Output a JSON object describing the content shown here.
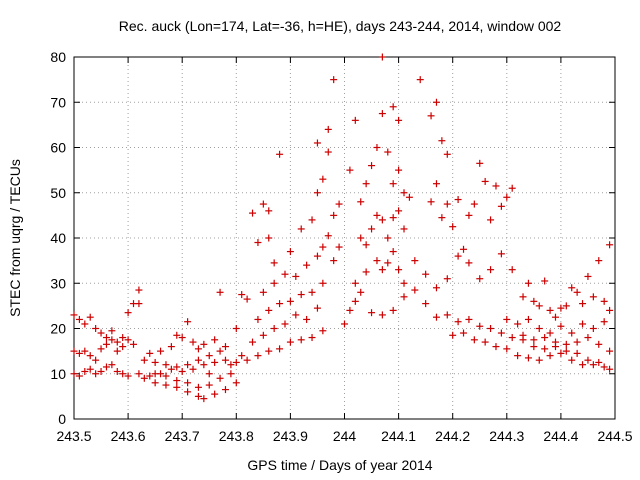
{
  "chart_data": {
    "type": "scatter",
    "title": "Rec. auck (Lon=174, Lat=-36, h=HE), days 243-244, 2014, window 002",
    "xlabel": "GPS time / Days of year 2014",
    "ylabel": "STEC from uqrg / TECUs",
    "xlim": [
      243.5,
      244.5
    ],
    "ylim": [
      0,
      80
    ],
    "x_ticks": [
      "243.5",
      "243.6",
      "243.7",
      "243.8",
      "243.9",
      "244",
      "244.1",
      "244.2",
      "244.3",
      "244.4",
      "244.5"
    ],
    "y_ticks": [
      "0",
      "10",
      "20",
      "30",
      "40",
      "50",
      "60",
      "70",
      "80"
    ],
    "grid": true,
    "legend": "none",
    "marker": "plus",
    "color": "#cc0000",
    "series": [
      {
        "points": [
          [
            243.5,
            23.0
          ],
          [
            243.51,
            22.0
          ],
          [
            243.52,
            21.0
          ],
          [
            243.53,
            22.5
          ],
          [
            243.54,
            20.0
          ],
          [
            243.55,
            19.0
          ],
          [
            243.56,
            18.0
          ],
          [
            243.57,
            19.5
          ],
          [
            243.58,
            17.0
          ],
          [
            243.59,
            18.0
          ],
          [
            243.6,
            23.5
          ],
          [
            243.61,
            25.5
          ],
          [
            243.62,
            25.5
          ],
          [
            243.62,
            28.5
          ],
          [
            243.5,
            15.0
          ],
          [
            243.51,
            14.5
          ],
          [
            243.52,
            15.0
          ],
          [
            243.53,
            14.0
          ],
          [
            243.54,
            13.0
          ],
          [
            243.55,
            15.5
          ],
          [
            243.56,
            16.5
          ],
          [
            243.57,
            17.5
          ],
          [
            243.58,
            15.0
          ],
          [
            243.59,
            16.0
          ],
          [
            243.6,
            17.5
          ],
          [
            243.61,
            16.5
          ],
          [
            243.5,
            10.0
          ],
          [
            243.51,
            9.5
          ],
          [
            243.52,
            10.5
          ],
          [
            243.53,
            11.0
          ],
          [
            243.54,
            10.0
          ],
          [
            243.55,
            10.5
          ],
          [
            243.56,
            11.5
          ],
          [
            243.57,
            12.0
          ],
          [
            243.58,
            10.5
          ],
          [
            243.59,
            10.0
          ],
          [
            243.6,
            9.5
          ],
          [
            243.62,
            10.0
          ],
          [
            243.64,
            9.5
          ],
          [
            243.66,
            10.0
          ],
          [
            243.68,
            11.0
          ],
          [
            243.7,
            10.5
          ],
          [
            243.72,
            11.0
          ],
          [
            243.74,
            12.0
          ],
          [
            243.76,
            12.5
          ],
          [
            243.78,
            13.0
          ],
          [
            243.63,
            13.0
          ],
          [
            243.65,
            12.5
          ],
          [
            243.67,
            12.0
          ],
          [
            243.69,
            11.5
          ],
          [
            243.71,
            12.0
          ],
          [
            243.73,
            13.0
          ],
          [
            243.75,
            14.0
          ],
          [
            243.77,
            15.0
          ],
          [
            243.64,
            14.5
          ],
          [
            243.66,
            15.0
          ],
          [
            243.68,
            16.0
          ],
          [
            243.7,
            18.0
          ],
          [
            243.72,
            17.0
          ],
          [
            243.74,
            16.5
          ],
          [
            243.76,
            17.5
          ],
          [
            243.78,
            16.0
          ],
          [
            243.63,
            9.0
          ],
          [
            243.65,
            8.0
          ],
          [
            243.67,
            7.5
          ],
          [
            243.69,
            7.0
          ],
          [
            243.71,
            6.0
          ],
          [
            243.73,
            5.0
          ],
          [
            243.74,
            4.5
          ],
          [
            243.76,
            5.5
          ],
          [
            243.78,
            6.5
          ],
          [
            243.8,
            8.0
          ],
          [
            243.65,
            10.0
          ],
          [
            243.67,
            9.5
          ],
          [
            243.69,
            8.5
          ],
          [
            243.71,
            8.0
          ],
          [
            243.73,
            7.0
          ],
          [
            243.75,
            7.5
          ],
          [
            243.77,
            9.0
          ],
          [
            243.79,
            10.0
          ],
          [
            243.69,
            18.5
          ],
          [
            243.71,
            21.5
          ],
          [
            243.73,
            15.5
          ],
          [
            243.75,
            10.0
          ],
          [
            243.77,
            28.0
          ],
          [
            243.79,
            12.0
          ],
          [
            243.81,
            14.0
          ],
          [
            243.8,
            12.5
          ],
          [
            243.8,
            20.0
          ],
          [
            243.81,
            27.5
          ],
          [
            243.82,
            26.5
          ],
          [
            243.83,
            45.5
          ],
          [
            243.84,
            39.0
          ],
          [
            243.85,
            47.5
          ],
          [
            243.86,
            46.0
          ],
          [
            243.86,
            40.0
          ],
          [
            243.87,
            34.5
          ],
          [
            243.88,
            58.5
          ],
          [
            243.82,
            13.0
          ],
          [
            243.84,
            14.0
          ],
          [
            243.86,
            15.0
          ],
          [
            243.88,
            15.5
          ],
          [
            243.9,
            17.0
          ],
          [
            243.92,
            17.5
          ],
          [
            243.94,
            18.0
          ],
          [
            243.96,
            19.5
          ],
          [
            243.83,
            17.0
          ],
          [
            243.85,
            18.5
          ],
          [
            243.87,
            20.0
          ],
          [
            243.89,
            21.0
          ],
          [
            243.91,
            23.0
          ],
          [
            243.93,
            22.0
          ],
          [
            243.95,
            24.5
          ],
          [
            243.84,
            22.0
          ],
          [
            243.86,
            24.0
          ],
          [
            243.88,
            25.5
          ],
          [
            243.9,
            26.0
          ],
          [
            243.92,
            27.5
          ],
          [
            243.94,
            28.0
          ],
          [
            243.96,
            30.0
          ],
          [
            243.85,
            28.0
          ],
          [
            243.87,
            30.0
          ],
          [
            243.89,
            32.0
          ],
          [
            243.91,
            31.5
          ],
          [
            243.93,
            34.0
          ],
          [
            243.95,
            36.0
          ],
          [
            243.9,
            37.0
          ],
          [
            243.92,
            42.0
          ],
          [
            243.94,
            44.0
          ],
          [
            243.95,
            50.0
          ],
          [
            243.96,
            53.0
          ],
          [
            243.97,
            59.0
          ],
          [
            243.97,
            64.0
          ],
          [
            243.95,
            61.0
          ],
          [
            243.98,
            75.0
          ],
          [
            243.96,
            38.0
          ],
          [
            243.97,
            40.5
          ],
          [
            243.98,
            45.0
          ],
          [
            243.99,
            47.5
          ],
          [
            243.98,
            35.0
          ],
          [
            243.99,
            38.0
          ],
          [
            244.0,
            21.0
          ],
          [
            244.01,
            24.0
          ],
          [
            244.02,
            26.0
          ],
          [
            244.03,
            28.0
          ],
          [
            244.02,
            30.0
          ],
          [
            244.04,
            32.5
          ],
          [
            244.01,
            55.0
          ],
          [
            244.02,
            66.0
          ],
          [
            244.03,
            48.0
          ],
          [
            244.04,
            52.0
          ],
          [
            244.05,
            56.0
          ],
          [
            244.06,
            60.0
          ],
          [
            244.07,
            67.5
          ],
          [
            244.07,
            80.0
          ],
          [
            244.08,
            59.0
          ],
          [
            244.09,
            69.0
          ],
          [
            244.1,
            66.0
          ],
          [
            244.09,
            52.0
          ],
          [
            244.1,
            55.0
          ],
          [
            244.11,
            50.0
          ],
          [
            244.12,
            49.0
          ],
          [
            244.03,
            40.0
          ],
          [
            244.04,
            38.5
          ],
          [
            244.05,
            42.0
          ],
          [
            244.06,
            45.0
          ],
          [
            244.07,
            44.0
          ],
          [
            244.08,
            40.0
          ],
          [
            244.09,
            44.5
          ],
          [
            244.1,
            46.0
          ],
          [
            244.11,
            42.0
          ],
          [
            244.06,
            35.0
          ],
          [
            244.07,
            33.0
          ],
          [
            244.08,
            34.5
          ],
          [
            244.09,
            37.0
          ],
          [
            244.1,
            33.0
          ],
          [
            244.11,
            30.0
          ],
          [
            244.05,
            23.5
          ],
          [
            244.07,
            23.0
          ],
          [
            244.09,
            24.0
          ],
          [
            244.11,
            27.0
          ],
          [
            244.13,
            28.5
          ],
          [
            244.15,
            25.5
          ],
          [
            244.14,
            75.0
          ],
          [
            244.16,
            67.0
          ],
          [
            244.17,
            70.0
          ],
          [
            244.18,
            61.5
          ],
          [
            244.19,
            58.5
          ],
          [
            244.16,
            48.0
          ],
          [
            244.17,
            52.0
          ],
          [
            244.18,
            44.5
          ],
          [
            244.19,
            47.5
          ],
          [
            244.2,
            42.5
          ],
          [
            244.21,
            48.5
          ],
          [
            244.22,
            37.5
          ],
          [
            244.23,
            45.0
          ],
          [
            244.24,
            47.5
          ],
          [
            244.25,
            56.5
          ],
          [
            244.26,
            52.5
          ],
          [
            244.27,
            44.0
          ],
          [
            244.28,
            51.5
          ],
          [
            244.29,
            47.0
          ],
          [
            244.3,
            49.0
          ],
          [
            244.31,
            51.0
          ],
          [
            244.13,
            35.0
          ],
          [
            244.15,
            32.0
          ],
          [
            244.17,
            29.0
          ],
          [
            244.19,
            31.0
          ],
          [
            244.21,
            36.0
          ],
          [
            244.23,
            34.5
          ],
          [
            244.25,
            31.0
          ],
          [
            244.27,
            33.0
          ],
          [
            244.29,
            36.5
          ],
          [
            244.31,
            33.0
          ],
          [
            244.17,
            22.5
          ],
          [
            244.19,
            23.0
          ],
          [
            244.21,
            21.5
          ],
          [
            244.23,
            22.0
          ],
          [
            244.25,
            20.5
          ],
          [
            244.27,
            20.0
          ],
          [
            244.29,
            19.0
          ],
          [
            244.31,
            18.0
          ],
          [
            244.33,
            17.5
          ],
          [
            244.35,
            16.0
          ],
          [
            244.37,
            15.5
          ],
          [
            244.39,
            16.0
          ],
          [
            244.41,
            15.0
          ],
          [
            244.43,
            14.5
          ],
          [
            244.45,
            13.0
          ],
          [
            244.47,
            12.5
          ],
          [
            244.49,
            11.0
          ],
          [
            244.2,
            18.5
          ],
          [
            244.22,
            19.0
          ],
          [
            244.24,
            17.5
          ],
          [
            244.26,
            17.0
          ],
          [
            244.28,
            16.0
          ],
          [
            244.3,
            15.5
          ],
          [
            244.32,
            14.0
          ],
          [
            244.34,
            13.5
          ],
          [
            244.36,
            13.0
          ],
          [
            244.38,
            14.0
          ],
          [
            244.4,
            14.5
          ],
          [
            244.42,
            13.0
          ],
          [
            244.44,
            12.0
          ],
          [
            244.46,
            12.0
          ],
          [
            244.48,
            11.5
          ],
          [
            244.33,
            27.0
          ],
          [
            244.34,
            30.0
          ],
          [
            244.35,
            26.0
          ],
          [
            244.36,
            25.0
          ],
          [
            244.37,
            30.5
          ],
          [
            244.38,
            24.0
          ],
          [
            244.39,
            22.5
          ],
          [
            244.4,
            24.5
          ],
          [
            244.41,
            25.0
          ],
          [
            244.42,
            29.0
          ],
          [
            244.43,
            28.0
          ],
          [
            244.44,
            25.5
          ],
          [
            244.45,
            31.5
          ],
          [
            244.46,
            27.0
          ],
          [
            244.47,
            35.0
          ],
          [
            244.48,
            26.0
          ],
          [
            244.49,
            38.5
          ],
          [
            244.49,
            24.0
          ],
          [
            244.3,
            22.0
          ],
          [
            244.32,
            21.0
          ],
          [
            244.34,
            22.0
          ],
          [
            244.36,
            20.0
          ],
          [
            244.38,
            19.0
          ],
          [
            244.4,
            20.5
          ],
          [
            244.42,
            19.0
          ],
          [
            244.44,
            21.0
          ],
          [
            244.46,
            20.0
          ],
          [
            244.48,
            21.5
          ],
          [
            244.33,
            18.5
          ],
          [
            244.35,
            17.5
          ],
          [
            244.37,
            18.0
          ],
          [
            244.39,
            17.0
          ],
          [
            244.41,
            16.5
          ],
          [
            244.43,
            17.0
          ],
          [
            244.45,
            18.0
          ],
          [
            244.47,
            16.5
          ],
          [
            244.49,
            15.0
          ]
        ]
      }
    ]
  }
}
